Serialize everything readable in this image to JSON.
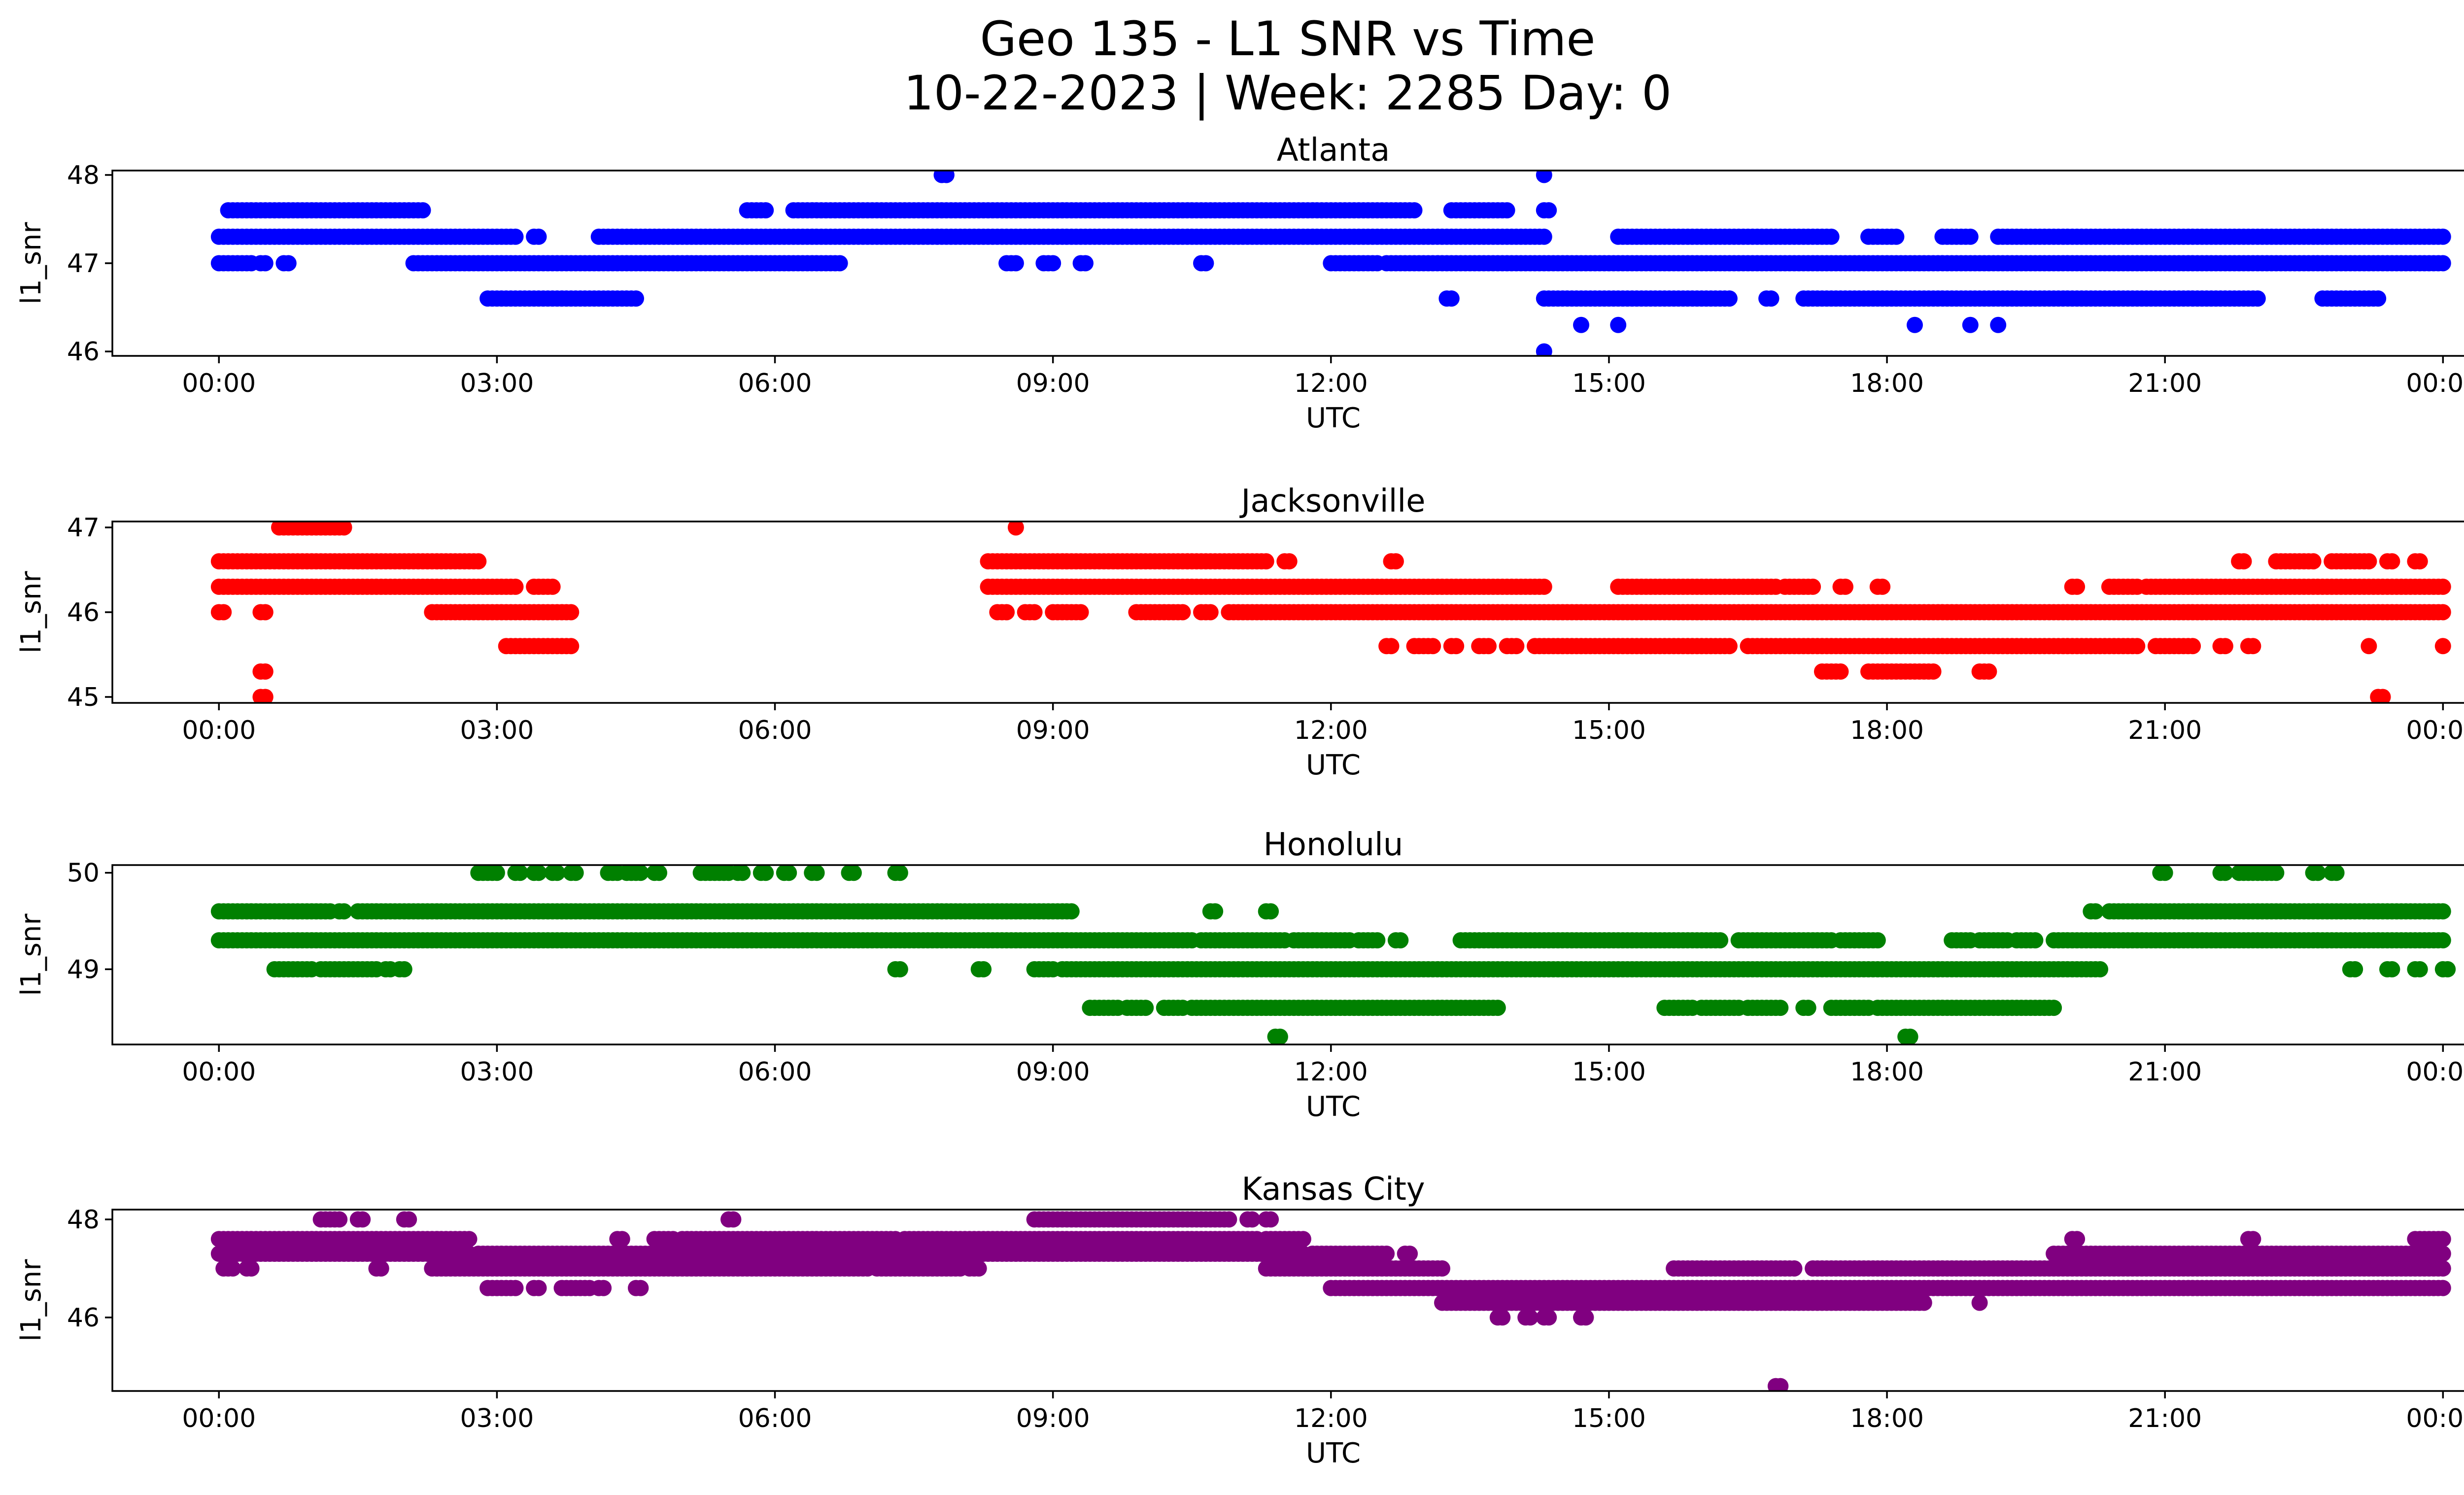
{
  "figure": {
    "title_line1": "Geo 135 - L1 SNR vs Time",
    "title_line2": "10-22-2023 | Week: 2285 Day: 0"
  },
  "chart_data": [
    {
      "type": "scatter",
      "title": "Atlanta",
      "xlabel": "UTC",
      "ylabel": "l1_snr",
      "color": "#0000ff",
      "x_range_hours": [
        -1.15,
        25.2
      ],
      "ylim": [
        45.95,
        48.05
      ],
      "yticks": [
        46,
        47,
        48
      ],
      "xtick_hours": [
        0,
        3,
        6,
        9,
        12,
        15,
        18,
        21,
        24
      ],
      "xtick_labels": [
        "00:00",
        "03:00",
        "06:00",
        "09:00",
        "12:00",
        "15:00",
        "18:00",
        "21:00",
        "00:00"
      ],
      "bands": [
        {
          "y": 47.6,
          "segments": [
            [
              0.1,
              2.2
            ],
            [
              5.7,
              5.9
            ],
            [
              6.2,
              12.0
            ],
            [
              12.05,
              12.9
            ],
            [
              13.3,
              13.9
            ],
            [
              14.3,
              14.35
            ]
          ]
        },
        {
          "y": 47.3,
          "segments": [
            [
              0.0,
              3.2
            ],
            [
              3.4,
              3.45
            ],
            [
              4.1,
              14.3
            ],
            [
              15.1,
              17.4
            ],
            [
              17.8,
              18.1
            ],
            [
              18.6,
              18.9
            ],
            [
              19.2,
              24.0
            ]
          ]
        },
        {
          "y": 47.0,
          "segments": [
            [
              0.0,
              0.35
            ],
            [
              0.45,
              0.5
            ],
            [
              0.7,
              0.75
            ],
            [
              2.1,
              6.7
            ],
            [
              8.5,
              8.6
            ],
            [
              8.9,
              9.0
            ],
            [
              9.3,
              9.35
            ],
            [
              10.6,
              10.65
            ],
            [
              12.0,
              12.5
            ],
            [
              12.6,
              24.0
            ]
          ]
        },
        {
          "y": 46.6,
          "segments": [
            [
              2.9,
              4.5
            ],
            [
              13.25,
              13.3
            ],
            [
              14.3,
              16.3
            ],
            [
              16.7,
              16.75
            ],
            [
              17.1,
              22.0
            ],
            [
              22.7,
              23.3
            ]
          ]
        }
      ],
      "points": [
        [
          7.8,
          48.0
        ],
        [
          7.85,
          48.0
        ],
        [
          14.3,
          48.0
        ],
        [
          14.3,
          46.0
        ],
        [
          14.7,
          46.3
        ],
        [
          15.1,
          46.3
        ],
        [
          18.3,
          46.3
        ],
        [
          18.9,
          46.3
        ],
        [
          19.2,
          46.3
        ]
      ]
    },
    {
      "type": "scatter",
      "title": "Jacksonville",
      "xlabel": "UTC",
      "ylabel": "l1_snr",
      "color": "#ff0000",
      "x_range_hours": [
        -1.15,
        25.2
      ],
      "ylim": [
        44.93,
        47.07
      ],
      "yticks": [
        45,
        46,
        47
      ],
      "xtick_hours": [
        0,
        3,
        6,
        9,
        12,
        15,
        18,
        21,
        24
      ],
      "xtick_labels": [
        "00:00",
        "03:00",
        "06:00",
        "09:00",
        "12:00",
        "15:00",
        "18:00",
        "21:00",
        "00:00"
      ],
      "bands": [
        {
          "y": 47.0,
          "segments": [
            [
              0.65,
              1.35
            ]
          ]
        },
        {
          "y": 46.6,
          "segments": [
            [
              0.0,
              2.8
            ],
            [
              8.3,
              11.3
            ],
            [
              11.5,
              11.55
            ],
            [
              12.65,
              12.7
            ],
            [
              21.8,
              21.85
            ],
            [
              22.2,
              22.6
            ],
            [
              22.8,
              23.2
            ],
            [
              23.4,
              23.45
            ],
            [
              23.7,
              23.75
            ]
          ]
        },
        {
          "y": 46.3,
          "segments": [
            [
              0.0,
              3.2
            ],
            [
              3.4,
              3.6
            ],
            [
              8.3,
              14.3
            ],
            [
              15.1,
              16.8
            ],
            [
              16.9,
              17.2
            ],
            [
              17.5,
              17.55
            ],
            [
              17.9,
              17.95
            ],
            [
              20.0,
              20.05
            ],
            [
              20.4,
              20.7
            ],
            [
              20.8,
              24.0
            ]
          ]
        },
        {
          "y": 46.0,
          "segments": [
            [
              0.0,
              0.05
            ],
            [
              0.45,
              0.5
            ],
            [
              2.3,
              3.8
            ],
            [
              8.4,
              8.5
            ],
            [
              8.7,
              8.8
            ],
            [
              9.0,
              9.3
            ],
            [
              9.9,
              10.4
            ],
            [
              10.6,
              10.7
            ],
            [
              10.9,
              24.0
            ]
          ]
        },
        {
          "y": 45.6,
          "segments": [
            [
              3.1,
              3.8
            ],
            [
              12.6,
              12.65
            ],
            [
              12.9,
              13.1
            ],
            [
              13.3,
              13.35
            ],
            [
              13.6,
              13.7
            ],
            [
              13.9,
              14.0
            ],
            [
              14.2,
              16.3
            ],
            [
              16.5,
              20.7
            ],
            [
              20.9,
              21.3
            ],
            [
              21.6,
              21.65
            ],
            [
              21.9,
              21.95
            ]
          ]
        },
        {
          "y": 45.3,
          "segments": [
            [
              0.45,
              0.5
            ],
            [
              17.3,
              17.5
            ],
            [
              17.8,
              18.5
            ],
            [
              19.0,
              19.1
            ]
          ]
        },
        {
          "y": 45.0,
          "segments": [
            [
              0.45,
              0.5
            ],
            [
              23.3,
              23.35
            ]
          ]
        }
      ],
      "points": [
        [
          8.6,
          47.0
        ],
        [
          23.2,
          45.6
        ],
        [
          24.0,
          45.6
        ]
      ]
    },
    {
      "type": "scatter",
      "title": "Honolulu",
      "xlabel": "UTC",
      "ylabel": "l1_snr",
      "color": "#008000",
      "x_range_hours": [
        -1.15,
        25.2
      ],
      "ylim": [
        48.22,
        50.08
      ],
      "yticks": [
        49,
        50
      ],
      "xtick_hours": [
        0,
        3,
        6,
        9,
        12,
        15,
        18,
        21,
        24
      ],
      "xtick_labels": [
        "00:00",
        "03:00",
        "06:00",
        "09:00",
        "12:00",
        "15:00",
        "18:00",
        "21:00",
        "00:00"
      ],
      "bands": [
        {
          "y": 50.0,
          "segments": [
            [
              2.8,
              3.0
            ],
            [
              3.2,
              3.25
            ],
            [
              3.4,
              3.45
            ],
            [
              3.6,
              3.65
            ],
            [
              3.8,
              3.85
            ],
            [
              4.2,
              4.3
            ],
            [
              4.4,
              4.55
            ],
            [
              4.7,
              4.75
            ],
            [
              5.2,
              5.5
            ],
            [
              5.6,
              5.65
            ],
            [
              5.85,
              5.9
            ],
            [
              6.1,
              6.15
            ],
            [
              6.4,
              6.45
            ],
            [
              6.8,
              6.85
            ],
            [
              7.3,
              7.35
            ],
            [
              20.95,
              21.0
            ],
            [
              21.6,
              21.65
            ],
            [
              21.8,
              22.2
            ],
            [
              22.6,
              22.65
            ],
            [
              22.8,
              22.85
            ]
          ]
        },
        {
          "y": 49.6,
          "segments": [
            [
              0.0,
              1.2
            ],
            [
              1.3,
              1.35
            ],
            [
              1.5,
              9.2
            ],
            [
              10.7,
              10.75
            ],
            [
              11.3,
              11.35
            ],
            [
              20.2,
              20.25
            ],
            [
              20.4,
              24.0
            ]
          ]
        },
        {
          "y": 49.3,
          "segments": [
            [
              0.0,
              10.5
            ],
            [
              10.6,
              11.5
            ],
            [
              11.6,
              12.2
            ],
            [
              12.3,
              12.5
            ],
            [
              12.7,
              12.75
            ],
            [
              13.4,
              16.2
            ],
            [
              16.4,
              17.4
            ],
            [
              17.5,
              17.9
            ],
            [
              18.7,
              18.9
            ],
            [
              19.0,
              19.3
            ],
            [
              19.4,
              19.6
            ],
            [
              19.8,
              24.0
            ]
          ]
        },
        {
          "y": 49.0,
          "segments": [
            [
              0.6,
              1.0
            ],
            [
              1.1,
              1.7
            ],
            [
              1.8,
              1.85
            ],
            [
              1.95,
              2.0
            ],
            [
              7.3,
              7.35
            ],
            [
              8.2,
              8.25
            ],
            [
              8.8,
              9.0
            ],
            [
              9.1,
              20.3
            ],
            [
              23.0,
              23.05
            ],
            [
              23.4,
              23.45
            ],
            [
              23.7,
              23.75
            ],
            [
              24.0,
              24.05
            ]
          ]
        },
        {
          "y": 48.6,
          "segments": [
            [
              9.4,
              9.7
            ],
            [
              9.8,
              10.0
            ],
            [
              10.2,
              10.4
            ],
            [
              10.5,
              13.8
            ],
            [
              15.6,
              15.9
            ],
            [
              16.0,
              16.4
            ],
            [
              16.5,
              16.85
            ],
            [
              17.1,
              17.15
            ],
            [
              17.4,
              17.8
            ],
            [
              17.9,
              19.8
            ]
          ]
        },
        {
          "y": 48.3,
          "segments": [
            [
              11.4,
              11.45
            ],
            [
              18.2,
              18.25
            ]
          ]
        }
      ],
      "points": []
    },
    {
      "type": "scatter",
      "title": "Kansas City",
      "xlabel": "UTC",
      "ylabel": "l1_snr",
      "color": "#800080",
      "x_range_hours": [
        -1.15,
        25.2
      ],
      "ylim": [
        44.5,
        48.2
      ],
      "yticks": [
        46,
        48
      ],
      "xtick_hours": [
        0,
        3,
        6,
        9,
        12,
        15,
        18,
        21,
        24
      ],
      "xtick_labels": [
        "00:00",
        "03:00",
        "06:00",
        "09:00",
        "12:00",
        "15:00",
        "18:00",
        "21:00",
        "00:00"
      ],
      "bands": [
        {
          "y": 48.0,
          "segments": [
            [
              1.1,
              1.3
            ],
            [
              1.5,
              1.55
            ],
            [
              2.0,
              2.05
            ],
            [
              5.5,
              5.55
            ],
            [
              8.8,
              10.9
            ],
            [
              11.1,
              11.15
            ],
            [
              11.3,
              11.35
            ]
          ]
        },
        {
          "y": 47.6,
          "segments": [
            [
              0.0,
              2.7
            ],
            [
              4.3,
              4.35
            ],
            [
              4.7,
              4.9
            ],
            [
              5.0,
              7.3
            ],
            [
              7.4,
              11.2
            ],
            [
              11.3,
              11.7
            ],
            [
              20.0,
              20.05
            ],
            [
              21.9,
              21.95
            ],
            [
              23.7,
              24.0
            ]
          ]
        },
        {
          "y": 47.3,
          "segments": [
            [
              0.0,
              2.7
            ],
            [
              2.8,
              11.7
            ],
            [
              11.8,
              12.6
            ],
            [
              12.8,
              12.85
            ],
            [
              19.8,
              24.0
            ]
          ]
        },
        {
          "y": 47.0,
          "segments": [
            [
              0.05,
              0.15
            ],
            [
              0.3,
              0.35
            ],
            [
              1.7,
              1.75
            ],
            [
              2.3,
              7.0
            ],
            [
              7.1,
              8.0
            ],
            [
              8.1,
              8.2
            ],
            [
              11.3,
              13.2
            ],
            [
              15.7,
              17.0
            ],
            [
              17.2,
              24.0
            ]
          ]
        },
        {
          "y": 46.6,
          "segments": [
            [
              2.9,
              3.2
            ],
            [
              3.4,
              3.45
            ],
            [
              3.7,
              4.0
            ],
            [
              4.1,
              4.15
            ],
            [
              4.5,
              4.55
            ],
            [
              12.0,
              24.0
            ]
          ]
        },
        {
          "y": 46.3,
          "segments": [
            [
              13.2,
              18.4
            ]
          ]
        },
        {
          "y": 46.0,
          "segments": [
            [
              13.8,
              13.85
            ],
            [
              14.1,
              14.15
            ],
            [
              14.3,
              14.35
            ],
            [
              14.7,
              14.75
            ]
          ]
        },
        {
          "y": 44.6,
          "segments": [
            [
              16.8,
              16.85
            ]
          ]
        }
      ],
      "points": [
        [
          19.0,
          46.3
        ]
      ]
    }
  ]
}
